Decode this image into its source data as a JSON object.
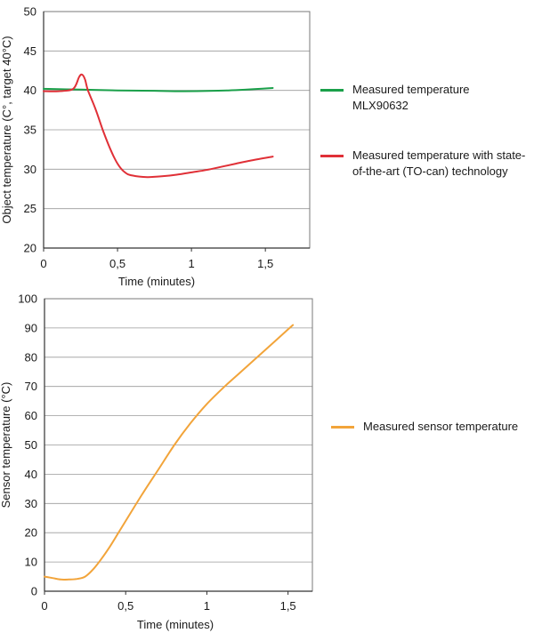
{
  "chart_data": [
    {
      "type": "line",
      "title": "",
      "xlabel": "Time (minutes)",
      "ylabel": "Object temperature (C°, target 40°C)",
      "xlim": [
        0,
        1.8
      ],
      "ylim": [
        20,
        50
      ],
      "x_ticks": [
        0,
        0.5,
        1,
        1.5
      ],
      "x_tick_labels": [
        "0",
        "0,5",
        "1",
        "1,5"
      ],
      "y_ticks": [
        20,
        25,
        30,
        35,
        40,
        45,
        50
      ],
      "y_tick_labels": [
        "20",
        "25",
        "30",
        "35",
        "40",
        "45",
        "50"
      ],
      "grid": "horizontal",
      "series": [
        {
          "name": "Measured temperature MLX90632",
          "color": "#1aa04a",
          "x": [
            0,
            0.25,
            0.5,
            0.75,
            0.95,
            1.25,
            1.55
          ],
          "y": [
            40.2,
            40.1,
            40.0,
            39.95,
            39.9,
            40.0,
            40.3
          ]
        },
        {
          "name": "Measured temperature with state-of-the-art (TO-can) technology",
          "color": "#e03037",
          "x": [
            0,
            0.1,
            0.2,
            0.24,
            0.26,
            0.28,
            0.3,
            0.35,
            0.4,
            0.45,
            0.5,
            0.55,
            0.6,
            0.7,
            0.8,
            0.9,
            1.0,
            1.1,
            1.2,
            1.3,
            1.4,
            1.55
          ],
          "y": [
            39.9,
            39.9,
            40.2,
            41.7,
            42.0,
            41.4,
            40.0,
            37.7,
            35.0,
            32.6,
            30.7,
            29.6,
            29.2,
            29.0,
            29.1,
            29.3,
            29.6,
            29.9,
            30.3,
            30.7,
            31.1,
            31.6
          ]
        }
      ],
      "legend_position": "right"
    },
    {
      "type": "line",
      "title": "",
      "xlabel": "Time (minutes)",
      "ylabel": "Sensor temperature (°C)",
      "xlim": [
        0,
        1.65
      ],
      "ylim": [
        0,
        100
      ],
      "x_ticks": [
        0,
        0.5,
        1,
        1.5
      ],
      "x_tick_labels": [
        "0",
        "0,5",
        "1",
        "1,5"
      ],
      "y_ticks": [
        0,
        10,
        20,
        30,
        40,
        50,
        60,
        70,
        80,
        90,
        100
      ],
      "y_tick_labels": [
        "0",
        "10",
        "20",
        "30",
        "40",
        "50",
        "60",
        "70",
        "80",
        "90",
        "100"
      ],
      "grid": "horizontal",
      "series": [
        {
          "name": "Measured sensor temperature",
          "color": "#f2a43a",
          "x": [
            0,
            0.05,
            0.1,
            0.15,
            0.2,
            0.25,
            0.3,
            0.35,
            0.4,
            0.45,
            0.5,
            0.6,
            0.7,
            0.8,
            0.9,
            1.0,
            1.1,
            1.2,
            1.3,
            1.4,
            1.5,
            1.53
          ],
          "y": [
            5,
            4.5,
            4.0,
            4.0,
            4.2,
            5.0,
            7.5,
            11.0,
            15.0,
            19.5,
            24.0,
            33.0,
            41.5,
            50.0,
            57.5,
            64.0,
            69.5,
            74.5,
            79.5,
            84.5,
            89.5,
            91.0
          ]
        }
      ],
      "legend_position": "right"
    }
  ]
}
